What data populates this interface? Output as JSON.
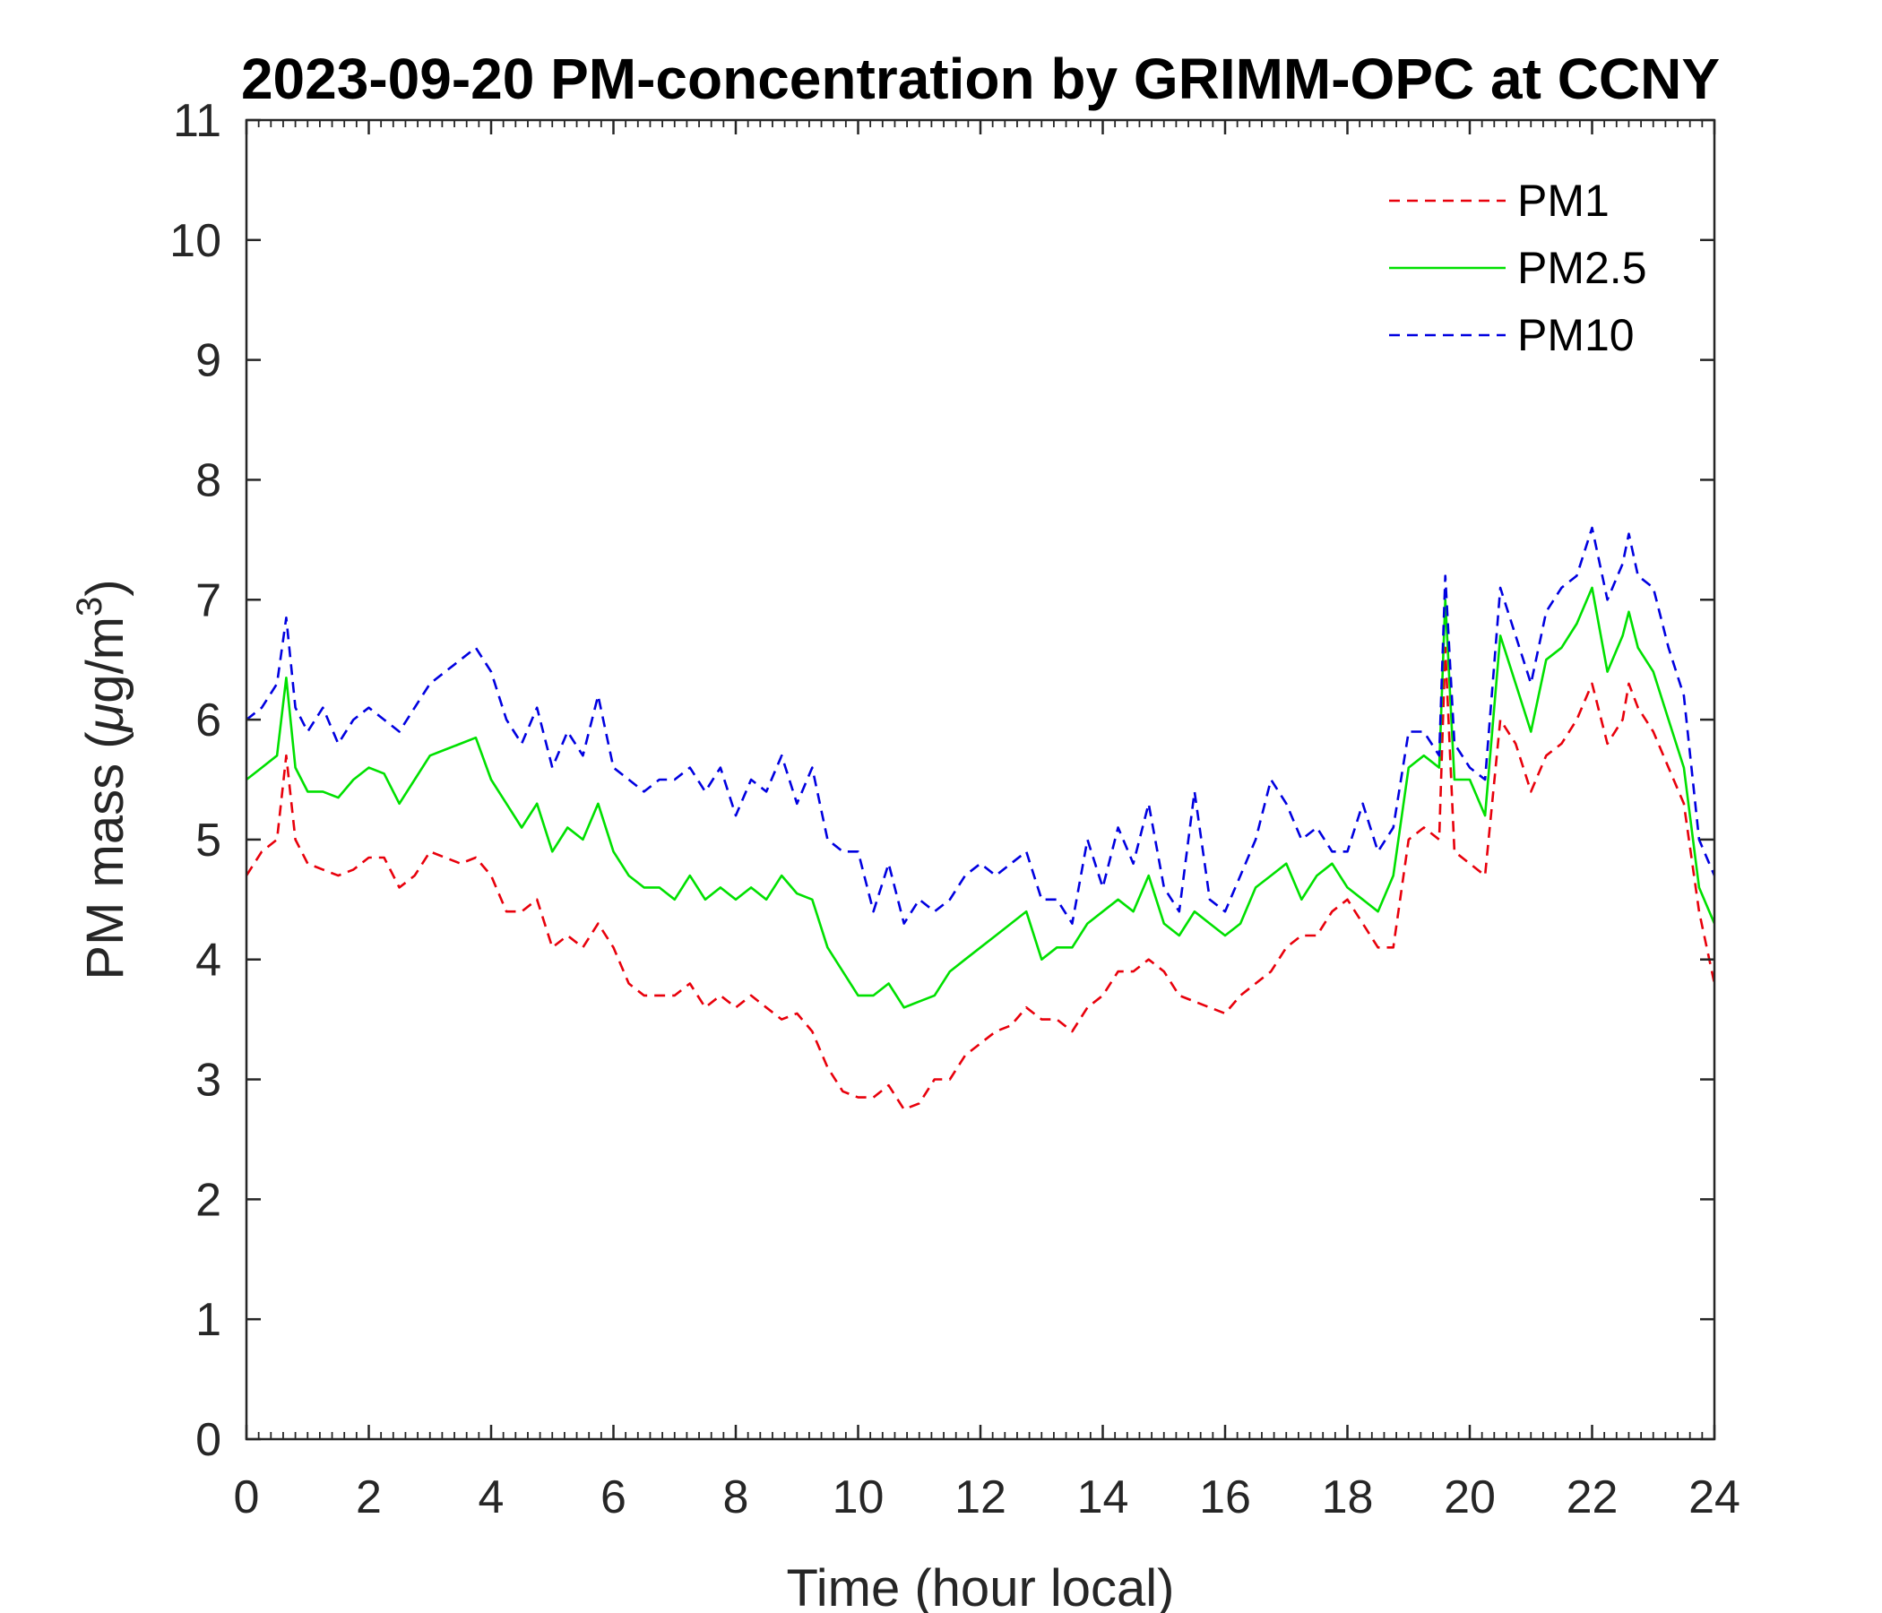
{
  "chart_data": {
    "type": "line",
    "title": "2023-09-20 PM-concentration by GRIMM-OPC at CCNY",
    "xlabel": "Time (hour local)",
    "ylabel_main": "PM mass (",
    "ylabel_mu": "μ",
    "ylabel_unit": "g/m",
    "ylabel_sup": "3",
    "ylabel_close": ")",
    "xlim": [
      0,
      24
    ],
    "ylim": [
      0,
      11
    ],
    "xticks": [
      0,
      2,
      4,
      6,
      8,
      10,
      12,
      14,
      16,
      18,
      20,
      22,
      24
    ],
    "yticks": [
      0,
      1,
      2,
      3,
      4,
      5,
      6,
      7,
      8,
      9,
      10,
      11
    ],
    "grid": false,
    "legend_position": "top-right",
    "series": [
      {
        "name": "PM1",
        "color": "#e8000b",
        "dash": "dashed",
        "x": [
          0,
          0.25,
          0.5,
          0.65,
          0.8,
          1,
          1.25,
          1.5,
          1.75,
          2,
          2.25,
          2.5,
          2.75,
          3,
          3.25,
          3.5,
          3.75,
          4,
          4.25,
          4.5,
          4.75,
          5,
          5.25,
          5.5,
          5.75,
          6,
          6.25,
          6.5,
          6.75,
          7,
          7.25,
          7.5,
          7.75,
          8,
          8.25,
          8.5,
          8.75,
          9,
          9.25,
          9.5,
          9.75,
          10,
          10.25,
          10.5,
          10.75,
          11,
          11.25,
          11.5,
          11.75,
          12,
          12.25,
          12.5,
          12.75,
          13,
          13.25,
          13.5,
          13.75,
          14,
          14.25,
          14.5,
          14.75,
          15,
          15.25,
          15.5,
          15.75,
          16,
          16.25,
          16.5,
          16.75,
          17,
          17.25,
          17.5,
          17.75,
          18,
          18.25,
          18.5,
          18.75,
          19,
          19.25,
          19.5,
          19.6,
          19.75,
          20,
          20.25,
          20.5,
          20.75,
          21,
          21.25,
          21.5,
          21.75,
          22,
          22.25,
          22.5,
          22.6,
          22.75,
          23,
          23.25,
          23.5,
          23.75,
          24
        ],
        "y": [
          4.7,
          4.9,
          5.0,
          5.7,
          5.0,
          4.8,
          4.75,
          4.7,
          4.75,
          4.85,
          4.85,
          4.6,
          4.7,
          4.9,
          4.85,
          4.8,
          4.85,
          4.7,
          4.4,
          4.4,
          4.5,
          4.1,
          4.2,
          4.1,
          4.3,
          4.1,
          3.8,
          3.7,
          3.7,
          3.7,
          3.8,
          3.6,
          3.7,
          3.6,
          3.7,
          3.6,
          3.5,
          3.55,
          3.4,
          3.1,
          2.9,
          2.85,
          2.85,
          2.95,
          2.75,
          2.8,
          3.0,
          3.0,
          3.2,
          3.3,
          3.4,
          3.45,
          3.6,
          3.5,
          3.5,
          3.4,
          3.6,
          3.7,
          3.9,
          3.9,
          4.0,
          3.9,
          3.7,
          3.65,
          3.6,
          3.55,
          3.7,
          3.8,
          3.9,
          4.1,
          4.2,
          4.2,
          4.4,
          4.5,
          4.3,
          4.1,
          4.1,
          5.0,
          5.1,
          5.0,
          6.6,
          4.9,
          4.8,
          4.7,
          6.0,
          5.8,
          5.4,
          5.7,
          5.8,
          6.0,
          6.3,
          5.8,
          6.0,
          6.3,
          6.1,
          5.9,
          5.6,
          5.3,
          4.4,
          3.8
        ]
      },
      {
        "name": "PM2.5",
        "color": "#00e000",
        "dash": "solid",
        "x": [
          0,
          0.25,
          0.5,
          0.65,
          0.8,
          1,
          1.25,
          1.5,
          1.75,
          2,
          2.25,
          2.5,
          2.75,
          3,
          3.25,
          3.5,
          3.75,
          4,
          4.25,
          4.5,
          4.75,
          5,
          5.25,
          5.5,
          5.75,
          6,
          6.25,
          6.5,
          6.75,
          7,
          7.25,
          7.5,
          7.75,
          8,
          8.25,
          8.5,
          8.75,
          9,
          9.25,
          9.5,
          9.75,
          10,
          10.25,
          10.5,
          10.75,
          11,
          11.25,
          11.5,
          11.75,
          12,
          12.25,
          12.5,
          12.75,
          13,
          13.25,
          13.5,
          13.75,
          14,
          14.25,
          14.5,
          14.75,
          15,
          15.25,
          15.5,
          15.75,
          16,
          16.25,
          16.5,
          16.75,
          17,
          17.25,
          17.5,
          17.75,
          18,
          18.25,
          18.5,
          18.75,
          19,
          19.25,
          19.5,
          19.6,
          19.75,
          20,
          20.25,
          20.5,
          20.75,
          21,
          21.25,
          21.5,
          21.75,
          22,
          22.25,
          22.5,
          22.6,
          22.75,
          23,
          23.25,
          23.5,
          23.75,
          24
        ],
        "y": [
          5.5,
          5.6,
          5.7,
          6.35,
          5.6,
          5.4,
          5.4,
          5.35,
          5.5,
          5.6,
          5.55,
          5.3,
          5.5,
          5.7,
          5.75,
          5.8,
          5.85,
          5.5,
          5.3,
          5.1,
          5.3,
          4.9,
          5.1,
          5.0,
          5.3,
          4.9,
          4.7,
          4.6,
          4.6,
          4.5,
          4.7,
          4.5,
          4.6,
          4.5,
          4.6,
          4.5,
          4.7,
          4.55,
          4.5,
          4.1,
          3.9,
          3.7,
          3.7,
          3.8,
          3.6,
          3.65,
          3.7,
          3.9,
          4.0,
          4.1,
          4.2,
          4.3,
          4.4,
          4.0,
          4.1,
          4.1,
          4.3,
          4.4,
          4.5,
          4.4,
          4.7,
          4.3,
          4.2,
          4.4,
          4.3,
          4.2,
          4.3,
          4.6,
          4.7,
          4.8,
          4.5,
          4.7,
          4.8,
          4.6,
          4.5,
          4.4,
          4.7,
          5.6,
          5.7,
          5.6,
          7.0,
          5.5,
          5.5,
          5.2,
          6.7,
          6.3,
          5.9,
          6.5,
          6.6,
          6.8,
          7.1,
          6.4,
          6.7,
          6.9,
          6.6,
          6.4,
          6.0,
          5.6,
          4.6,
          4.3
        ]
      },
      {
        "name": "PM10",
        "color": "#0000e0",
        "dash": "dashed",
        "x": [
          0,
          0.25,
          0.5,
          0.65,
          0.8,
          1,
          1.25,
          1.5,
          1.75,
          2,
          2.25,
          2.5,
          2.75,
          3,
          3.25,
          3.5,
          3.75,
          4,
          4.25,
          4.5,
          4.75,
          5,
          5.25,
          5.5,
          5.75,
          6,
          6.25,
          6.5,
          6.75,
          7,
          7.25,
          7.5,
          7.75,
          8,
          8.25,
          8.5,
          8.75,
          9,
          9.25,
          9.5,
          9.75,
          10,
          10.25,
          10.5,
          10.75,
          11,
          11.25,
          11.5,
          11.75,
          12,
          12.25,
          12.5,
          12.75,
          13,
          13.25,
          13.5,
          13.75,
          14,
          14.25,
          14.5,
          14.75,
          15,
          15.25,
          15.5,
          15.75,
          16,
          16.25,
          16.5,
          16.75,
          17,
          17.25,
          17.5,
          17.75,
          18,
          18.25,
          18.5,
          18.75,
          19,
          19.25,
          19.5,
          19.6,
          19.75,
          20,
          20.25,
          20.5,
          20.75,
          21,
          21.25,
          21.5,
          21.75,
          22,
          22.25,
          22.5,
          22.6,
          22.75,
          23,
          23.25,
          23.5,
          23.75,
          24
        ],
        "y": [
          6.0,
          6.1,
          6.3,
          6.85,
          6.1,
          5.9,
          6.1,
          5.8,
          6.0,
          6.1,
          6.0,
          5.9,
          6.1,
          6.3,
          6.4,
          6.5,
          6.6,
          6.4,
          6.0,
          5.8,
          6.1,
          5.6,
          5.9,
          5.7,
          6.2,
          5.6,
          5.5,
          5.4,
          5.5,
          5.5,
          5.6,
          5.4,
          5.6,
          5.2,
          5.5,
          5.4,
          5.7,
          5.3,
          5.6,
          5.0,
          4.9,
          4.9,
          4.4,
          4.8,
          4.3,
          4.5,
          4.4,
          4.5,
          4.7,
          4.8,
          4.7,
          4.8,
          4.9,
          4.5,
          4.5,
          4.3,
          5.0,
          4.6,
          5.1,
          4.8,
          5.3,
          4.6,
          4.4,
          5.4,
          4.5,
          4.4,
          4.7,
          5.0,
          5.5,
          5.3,
          5.0,
          5.1,
          4.9,
          4.9,
          5.3,
          4.9,
          5.1,
          5.9,
          5.9,
          5.7,
          7.2,
          5.8,
          5.6,
          5.5,
          7.1,
          6.7,
          6.3,
          6.9,
          7.1,
          7.2,
          7.6,
          7.0,
          7.3,
          7.55,
          7.2,
          7.1,
          6.6,
          6.2,
          5.0,
          4.7
        ]
      }
    ]
  }
}
